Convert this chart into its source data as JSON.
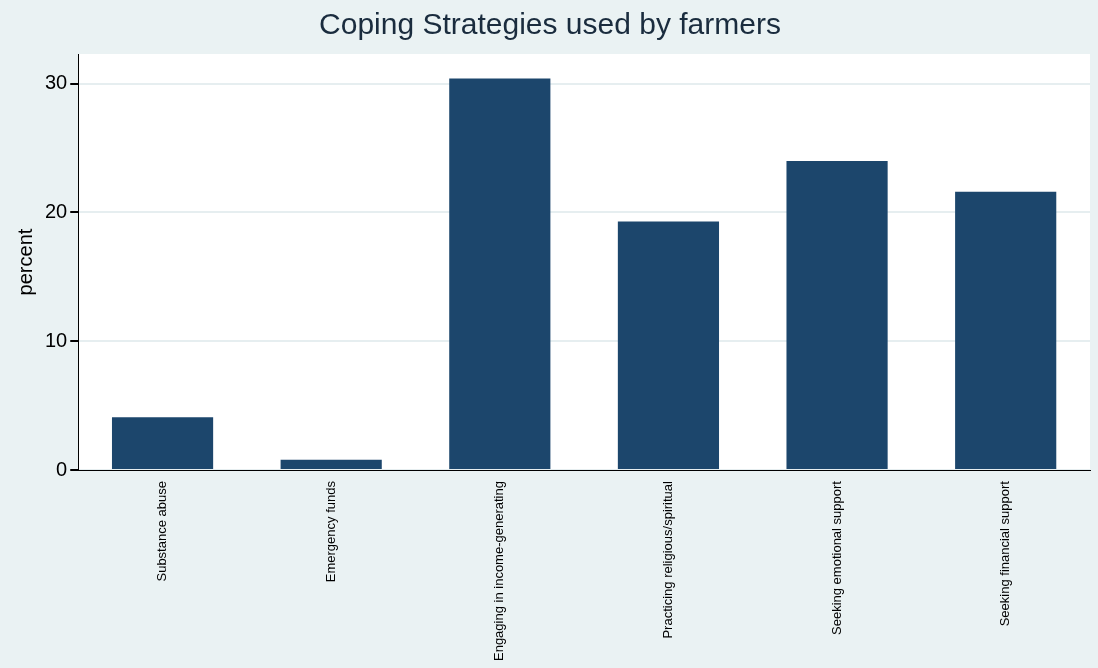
{
  "chart_data": {
    "type": "bar",
    "title": "Coping Strategies used by farmers",
    "ylabel": "percent",
    "categories": [
      "Substance abuse",
      "Emergency funds",
      "Engaging in income-generating",
      "Practicing religious/spiritual",
      "Seeking emotional support",
      "Seeking financial support"
    ],
    "values": [
      4.1,
      0.8,
      30.4,
      19.3,
      24.0,
      21.6
    ],
    "color": "#1c466c",
    "ylim": [
      0,
      32.3
    ],
    "yticks": [
      0,
      10,
      20,
      30
    ],
    "grid": "y",
    "legend": false
  }
}
